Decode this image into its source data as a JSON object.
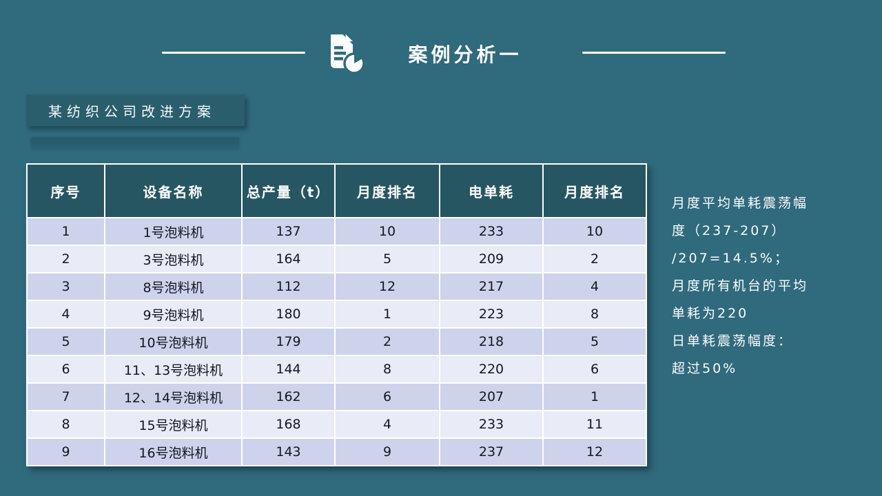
{
  "slide": {
    "background_color": "#306a7d"
  },
  "header": {
    "title": "案例分析一",
    "icon": "document-pie-chart-icon"
  },
  "subtitle": {
    "label": "某纺织公司改进方案"
  },
  "table": {
    "headers": [
      "序号",
      "设备名称",
      "总产量（t）",
      "月度排名",
      "电单耗",
      "月度排名"
    ],
    "rows": [
      [
        "1",
        "1号泡料机",
        "137",
        "10",
        "233",
        "10"
      ],
      [
        "2",
        "3号泡料机",
        "164",
        "5",
        "209",
        "2"
      ],
      [
        "3",
        "8号泡料机",
        "112",
        "12",
        "217",
        "4"
      ],
      [
        "4",
        "9号泡料机",
        "180",
        "1",
        "223",
        "8"
      ],
      [
        "5",
        "10号泡料机",
        "179",
        "2",
        "218",
        "5"
      ],
      [
        "6",
        "11、13号泡料机",
        "144",
        "8",
        "220",
        "6"
      ],
      [
        "7",
        "12、14号泡料机",
        "162",
        "6",
        "207",
        "1"
      ],
      [
        "8",
        "15号泡料机",
        "168",
        "4",
        "233",
        "11"
      ],
      [
        "9",
        "16号泡料机",
        "143",
        "9",
        "237",
        "12"
      ]
    ]
  },
  "note": {
    "lines": [
      "月度平均单耗震荡幅",
      "度（237-207）",
      "/207=14.5%；",
      "月度所有机台的平均",
      "单耗为220",
      "日单耗震荡幅度：",
      "超过50%"
    ]
  },
  "colors": {
    "background": "#306a7d",
    "table_header_bg": "#275663",
    "subtitle_box_bg": "#2b5e6c",
    "row_odd": "#cdd3ea",
    "row_even": "#e9ecf6",
    "cell_text": "#131722",
    "white": "#ffffff"
  }
}
